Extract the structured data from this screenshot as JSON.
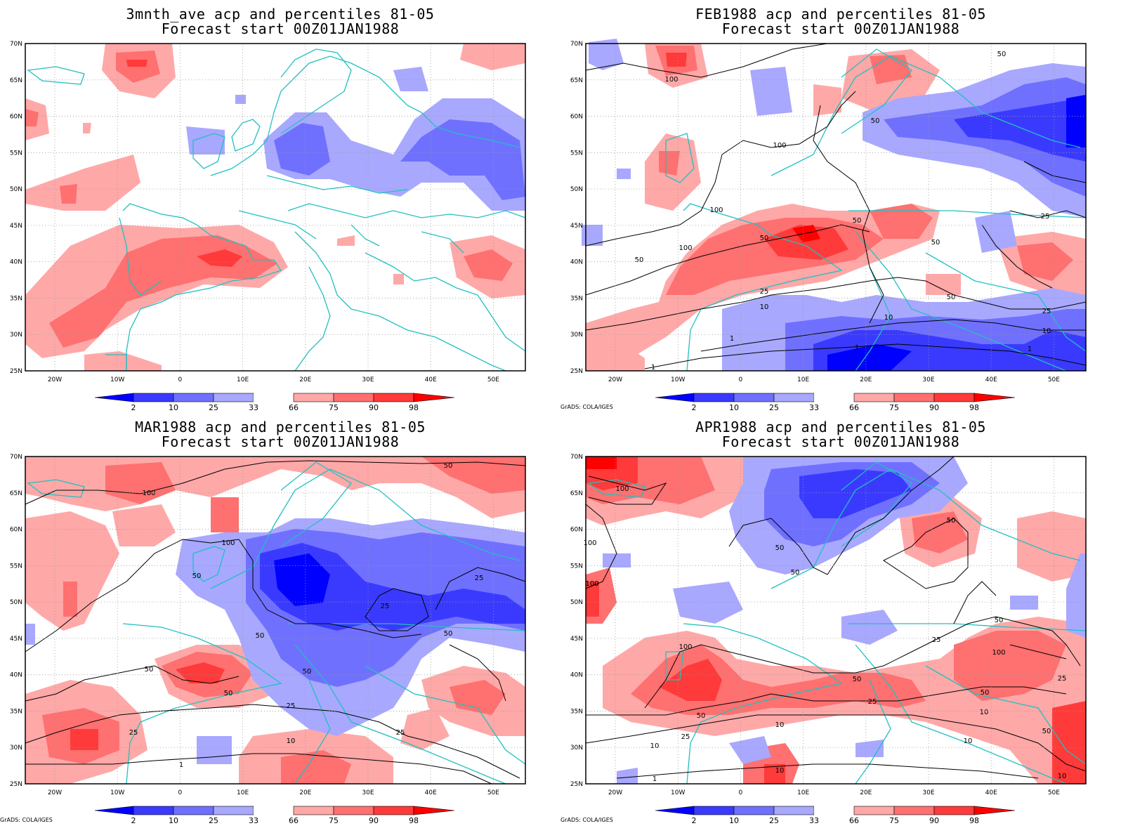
{
  "credit": "GrADS: COLA/IGES",
  "axes": {
    "lat_labels": [
      "70N",
      "65N",
      "60N",
      "55N",
      "50N",
      "45N",
      "40N",
      "35N",
      "30N",
      "25N"
    ],
    "lon_labels": [
      "20W",
      "10W",
      "0",
      "10E",
      "20E",
      "30E",
      "40E",
      "50E"
    ]
  },
  "colorbar": {
    "labels": [
      "2",
      "10",
      "25",
      "33",
      "66",
      "75",
      "90",
      "98"
    ],
    "colors": [
      "#0000ff",
      "#3a3aff",
      "#7070ff",
      "#a8a8ff",
      "#ffa8a8",
      "#ff7070",
      "#ff3a3a",
      "#ff0000"
    ]
  },
  "panels": [
    {
      "title1": "3mnth_ave acp and percentiles 81-05",
      "title2": "Forecast start 00Z01JAN1988",
      "credit": false,
      "contour_labels": []
    },
    {
      "title1": "FEB1988 acp and percentiles 81-05",
      "title2": "Forecast start 00Z01JAN1988",
      "credit": true,
      "contour_labels": [
        "50",
        "100",
        "50",
        "100",
        "100",
        "50",
        "50",
        "100",
        "50",
        "50",
        "25",
        "25",
        "10",
        "50",
        "10",
        "1",
        "1",
        "25",
        "10",
        "1",
        "1"
      ]
    },
    {
      "title1": "MAR1988 acp and percentiles 81-05",
      "title2": "Forecast start 00Z01JAN1988",
      "credit": true,
      "contour_labels": [
        "50",
        "100",
        "100",
        "50",
        "25",
        "25",
        "50",
        "50",
        "50",
        "50",
        "25",
        "50",
        "10",
        "25",
        "25",
        "1"
      ]
    },
    {
      "title1": "APR1988 acp and percentiles 81-05",
      "title2": "Forecast start 00Z01JAN1988",
      "credit": true,
      "contour_labels": [
        "100",
        "100",
        "100",
        "50",
        "50",
        "50",
        "100",
        "50",
        "100",
        "25",
        "25",
        "50",
        "50",
        "25",
        "50",
        "10",
        "10",
        "25",
        "10",
        "10",
        "1",
        "10",
        "50",
        "10"
      ]
    }
  ]
}
